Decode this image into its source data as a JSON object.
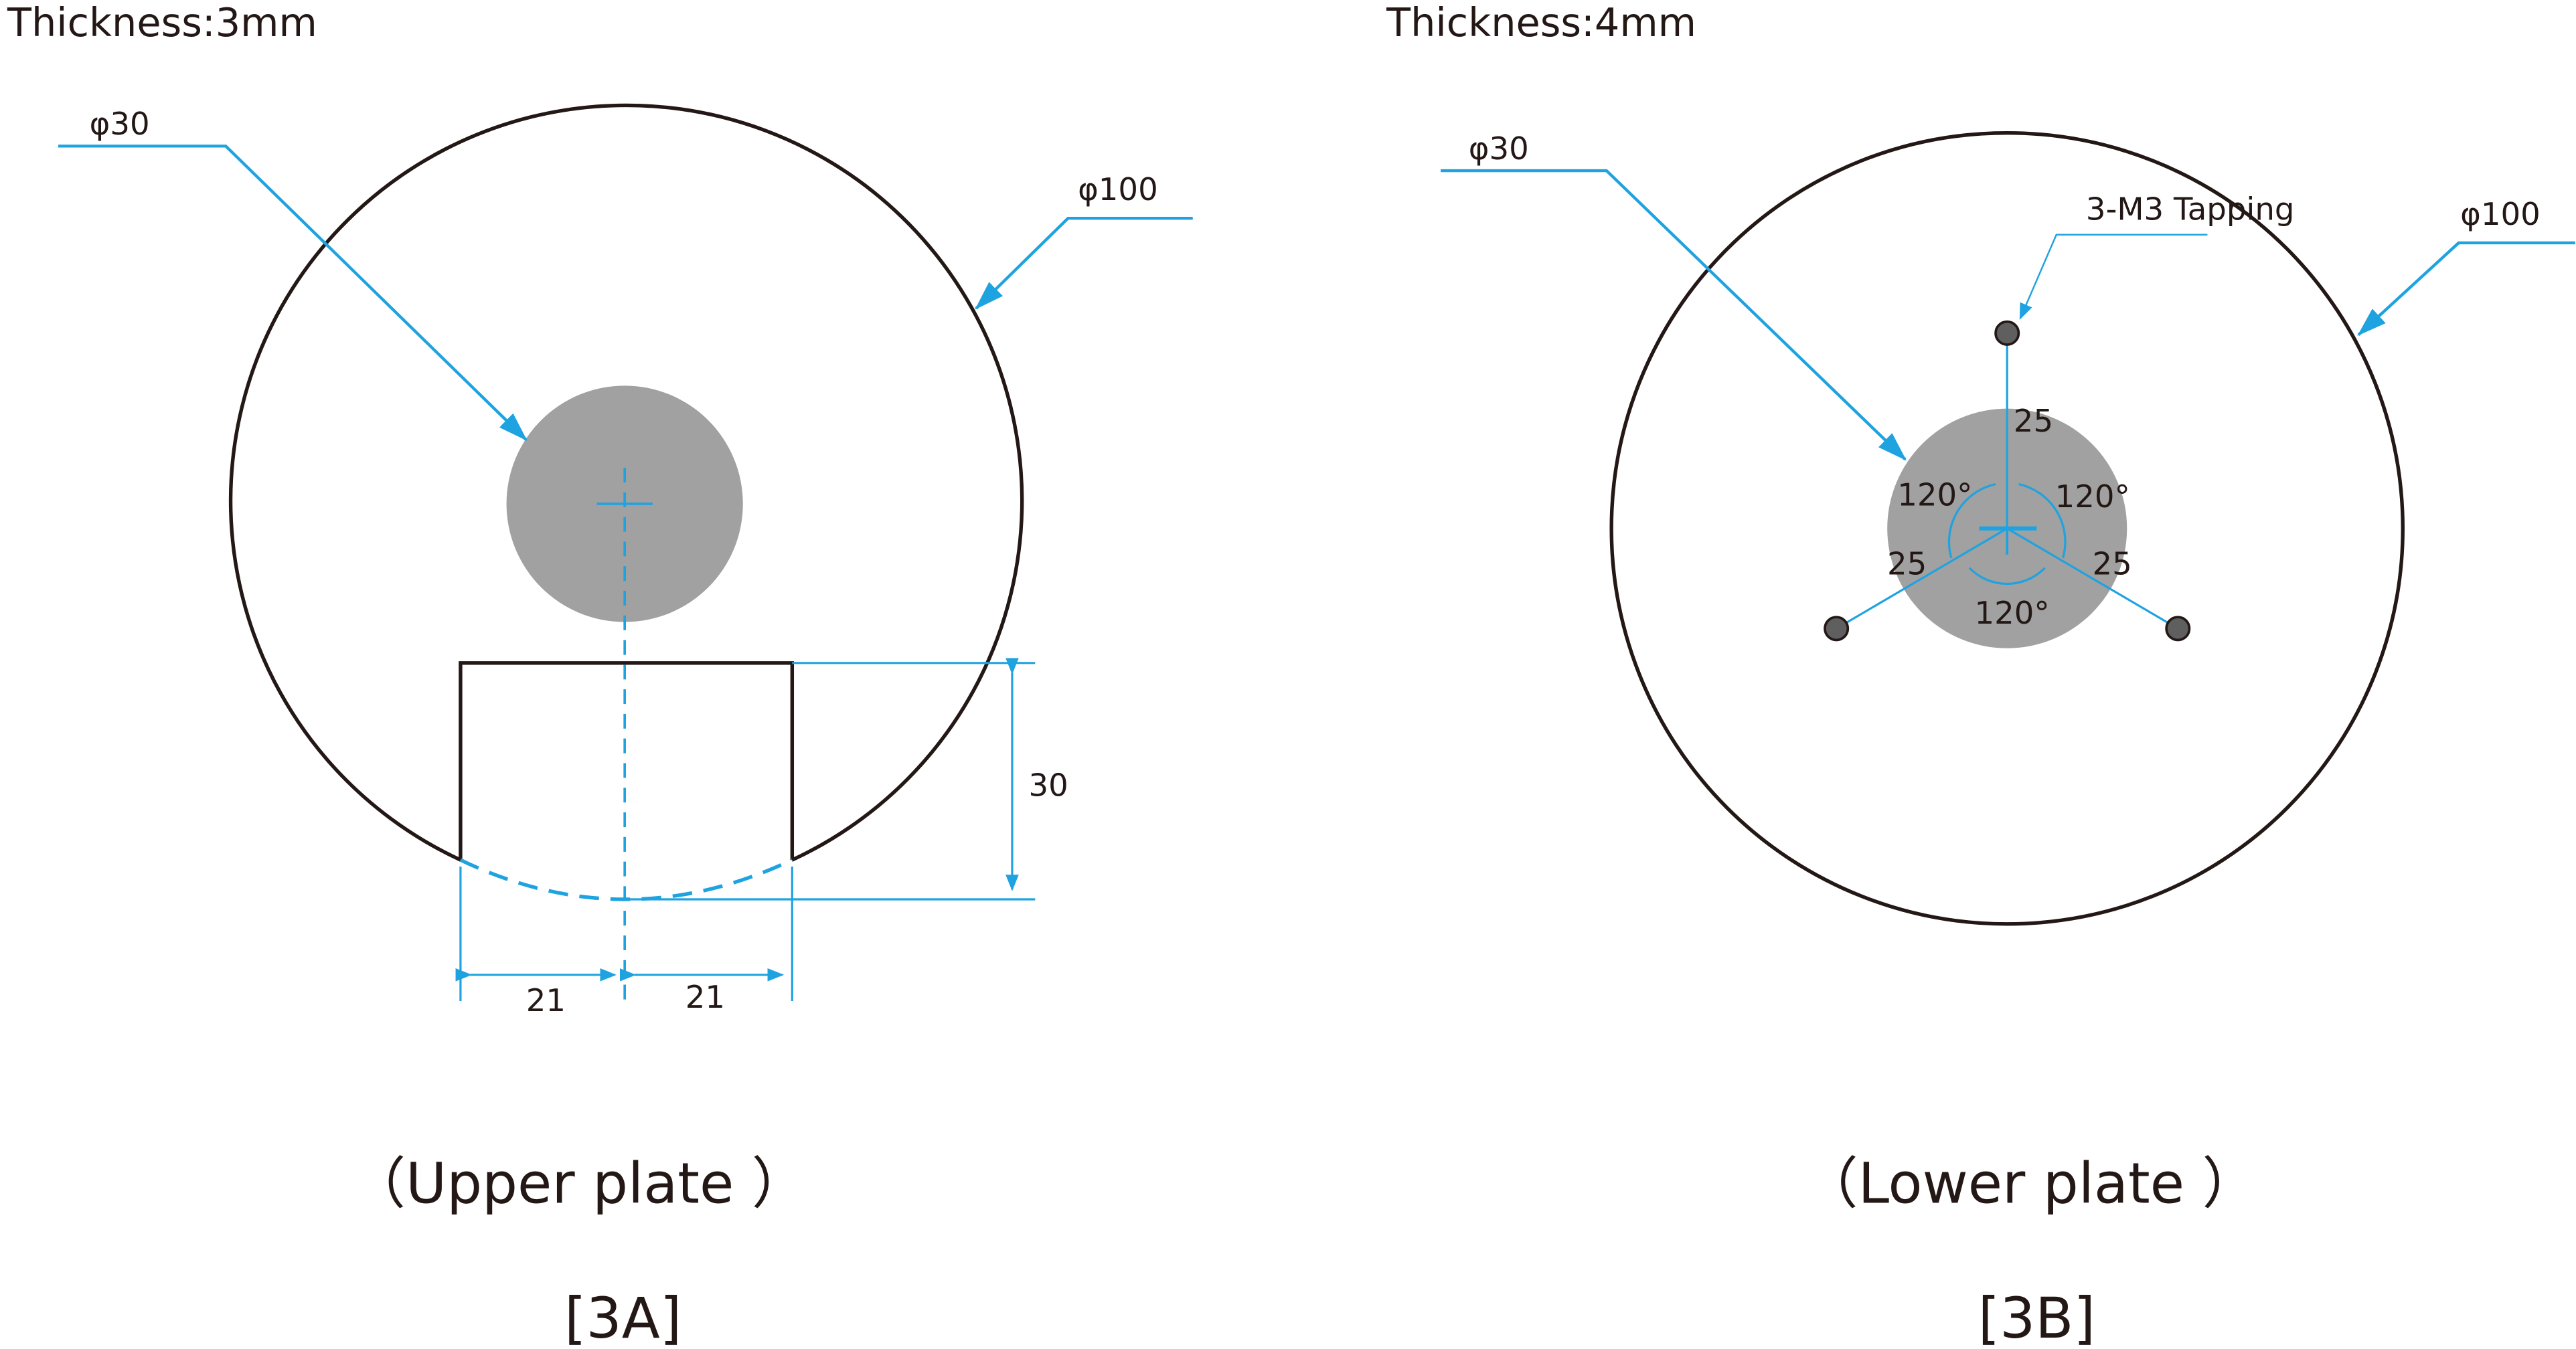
{
  "colors": {
    "dimension": "#1fa3e0",
    "fill": "#a0a1a0",
    "outline": "#231815",
    "hole": "#5f5f5f"
  },
  "upper": {
    "thickness": "Thickness:3mm",
    "inner_diameter": "φ30",
    "outer_diameter": "φ100",
    "slot_depth": "30",
    "slot_half_left": "21",
    "slot_half_right": "21",
    "caption": "（Upper  plate ）",
    "label": "[3A]"
  },
  "lower": {
    "thickness": "Thickness:4mm",
    "inner_diameter": "φ30",
    "outer_diameter": "φ100",
    "tapping": "3-M3 Tapping",
    "radius_top": "25",
    "radius_left": "25",
    "radius_right": "25",
    "angle_left": "120°",
    "angle_right": "120°",
    "angle_bottom": "120°",
    "caption": "（Lower  plate ）",
    "label": "[3B]"
  }
}
